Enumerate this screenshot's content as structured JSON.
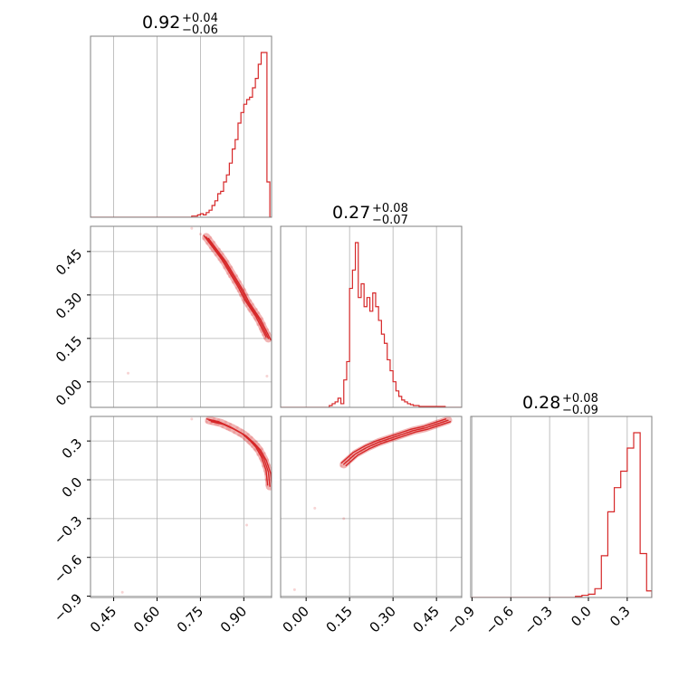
{
  "colors": {
    "series": "#d62728",
    "grid": "#b0b0b0",
    "frame": "#808080"
  },
  "chart_data": {
    "type": "corner",
    "parameters": 3,
    "titles": [
      {
        "value": "0.92",
        "plus": "+0.04",
        "minus": "−0.06"
      },
      {
        "value": "0.27",
        "plus": "+0.08",
        "minus": "−0.07"
      },
      {
        "value": "0.28",
        "plus": "+0.08",
        "minus": "−0.09"
      }
    ],
    "axes": [
      {
        "range": [
          0.37,
          0.996
        ],
        "ticks": [
          0.45,
          0.6,
          0.75,
          0.9
        ],
        "tick_labels": [
          "0.45",
          "0.60",
          "0.75",
          "0.90"
        ]
      },
      {
        "range": [
          -0.088,
          0.537
        ],
        "ticks": [
          0.0,
          0.15,
          0.3,
          0.45
        ],
        "tick_labels": [
          "0.00",
          "0.15",
          "0.30",
          "0.45"
        ]
      },
      {
        "range": [
          -0.91,
          0.49
        ],
        "ticks": [
          -0.9,
          -0.6,
          -0.3,
          0.0,
          0.3
        ],
        "tick_labels": [
          "−0.9",
          "−0.6",
          "−0.3",
          "0.0",
          "0.3"
        ]
      }
    ],
    "histograms": [
      {
        "param": 0,
        "bin_edges": [
          0.72,
          0.73,
          0.74,
          0.75,
          0.76,
          0.77,
          0.78,
          0.79,
          0.8,
          0.81,
          0.82,
          0.83,
          0.84,
          0.85,
          0.86,
          0.87,
          0.88,
          0.89,
          0.9,
          0.91,
          0.92,
          0.93,
          0.94,
          0.95,
          0.96,
          0.97,
          0.98,
          0.99
        ],
        "counts": [
          1,
          1,
          2,
          3,
          2,
          4,
          6,
          10,
          14,
          20,
          22,
          30,
          36,
          46,
          58,
          66,
          80,
          89,
          96,
          100,
          102,
          110,
          118,
          130,
          140,
          140,
          30
        ]
      },
      {
        "param": 1,
        "bin_edges": [
          0.08,
          0.09,
          0.1,
          0.11,
          0.12,
          0.13,
          0.14,
          0.15,
          0.16,
          0.17,
          0.18,
          0.19,
          0.2,
          0.21,
          0.22,
          0.23,
          0.24,
          0.25,
          0.26,
          0.27,
          0.28,
          0.29,
          0.3,
          0.31,
          0.32,
          0.33,
          0.34,
          0.35,
          0.36,
          0.37,
          0.38,
          0.39,
          0.4,
          0.41,
          0.42,
          0.43,
          0.44,
          0.45,
          0.46,
          0.47,
          0.48
        ],
        "counts": [
          2,
          4,
          6,
          10,
          4,
          30,
          50,
          130,
          150,
          180,
          120,
          135,
          110,
          120,
          105,
          125,
          110,
          95,
          80,
          70,
          52,
          40,
          28,
          18,
          12,
          8,
          6,
          4,
          3,
          2,
          2,
          1,
          1,
          1,
          1,
          1,
          1,
          1,
          1,
          1
        ]
      },
      {
        "param": 2,
        "bin_edges": [
          -0.1,
          -0.05,
          0.0,
          0.05,
          0.1,
          0.15,
          0.2,
          0.25,
          0.3,
          0.35,
          0.4,
          0.45,
          0.49
        ],
        "counts": [
          1,
          2,
          3,
          8,
          38,
          78,
          100,
          115,
          136,
          150,
          40,
          6
        ]
      }
    ],
    "scatters": [
      {
        "x_param": 0,
        "y_param": 1,
        "curve": [
          [
            0.77,
            0.5
          ],
          [
            0.8,
            0.46
          ],
          [
            0.83,
            0.42
          ],
          [
            0.86,
            0.37
          ],
          [
            0.89,
            0.32
          ],
          [
            0.91,
            0.28
          ],
          [
            0.93,
            0.25
          ],
          [
            0.95,
            0.22
          ],
          [
            0.97,
            0.18
          ],
          [
            0.985,
            0.15
          ]
        ],
        "outliers": [
          [
            0.5,
            0.03
          ],
          [
            0.75,
            0.51
          ],
          [
            0.72,
            0.53
          ],
          [
            0.98,
            0.02
          ]
        ]
      },
      {
        "x_param": 0,
        "y_param": 2,
        "curve": [
          [
            0.78,
            0.46
          ],
          [
            0.82,
            0.44
          ],
          [
            0.86,
            0.4
          ],
          [
            0.9,
            0.35
          ],
          [
            0.93,
            0.29
          ],
          [
            0.95,
            0.24
          ],
          [
            0.97,
            0.16
          ],
          [
            0.985,
            0.06
          ],
          [
            0.99,
            -0.05
          ]
        ],
        "outliers": [
          [
            0.48,
            -0.87
          ],
          [
            0.91,
            -0.35
          ],
          [
            0.72,
            0.47
          ]
        ]
      },
      {
        "x_param": 1,
        "y_param": 2,
        "curve": [
          [
            0.13,
            0.12
          ],
          [
            0.17,
            0.2
          ],
          [
            0.21,
            0.25
          ],
          [
            0.25,
            0.29
          ],
          [
            0.29,
            0.32
          ],
          [
            0.33,
            0.35
          ],
          [
            0.37,
            0.38
          ],
          [
            0.41,
            0.4
          ],
          [
            0.45,
            0.43
          ],
          [
            0.49,
            0.46
          ]
        ],
        "outliers": [
          [
            0.03,
            -0.22
          ],
          [
            0.13,
            -0.3
          ],
          [
            -0.04,
            -0.85
          ]
        ]
      }
    ]
  }
}
